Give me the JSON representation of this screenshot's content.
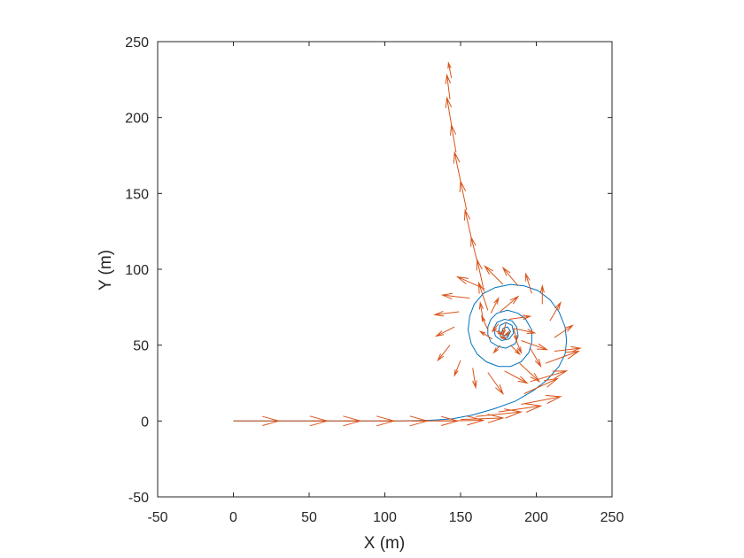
{
  "chart_data": {
    "type": "line",
    "title": "",
    "xlabel": "X (m)",
    "ylabel": "Y (m)",
    "xlim": [
      -50,
      250
    ],
    "ylim": [
      -50,
      250
    ],
    "xticks": [
      -50,
      0,
      50,
      100,
      150,
      200,
      250
    ],
    "yticks": [
      -50,
      0,
      50,
      100,
      150,
      200,
      250
    ],
    "xtick_labels": [
      "-50",
      "0",
      "50",
      "100",
      "150",
      "200",
      "250"
    ],
    "ytick_labels": [
      "-50",
      "0",
      "50",
      "100",
      "150",
      "200",
      "250"
    ],
    "grid": false,
    "box": true,
    "series": [
      {
        "kind": "trajectory",
        "color": "#0072BD",
        "points": [
          [
            0,
            0
          ],
          [
            40,
            0
          ],
          [
            80,
            0
          ],
          [
            110,
            0
          ],
          [
            130,
            0.5
          ],
          [
            145,
            1.5
          ],
          [
            158,
            4
          ],
          [
            172,
            8
          ],
          [
            186,
            13
          ],
          [
            198,
            20
          ],
          [
            207,
            27
          ],
          [
            215,
            36
          ],
          [
            219,
            44
          ],
          [
            220,
            53
          ],
          [
            219,
            62
          ],
          [
            215,
            72
          ],
          [
            209,
            80
          ],
          [
            201,
            86
          ],
          [
            192,
            89
          ],
          [
            183,
            90
          ],
          [
            173,
            88
          ],
          [
            165,
            84
          ],
          [
            159,
            77
          ],
          [
            156,
            69
          ],
          [
            155,
            60
          ],
          [
            157,
            51
          ],
          [
            161,
            44
          ],
          [
            167,
            39
          ],
          [
            175,
            36
          ],
          [
            183,
            36
          ],
          [
            190,
            39
          ],
          [
            195,
            45
          ],
          [
            197,
            52
          ],
          [
            197,
            60
          ],
          [
            193,
            67
          ],
          [
            188,
            71
          ],
          [
            181,
            73
          ],
          [
            174,
            71
          ],
          [
            170,
            67
          ],
          [
            168,
            62
          ],
          [
            168,
            57
          ],
          [
            170,
            52
          ],
          [
            175,
            49
          ],
          [
            180,
            48
          ],
          [
            186,
            51
          ],
          [
            188,
            56
          ],
          [
            187,
            62
          ],
          [
            184,
            66
          ],
          [
            179,
            67
          ],
          [
            174,
            65
          ],
          [
            172,
            61
          ],
          [
            173,
            56
          ],
          [
            177,
            53
          ],
          [
            182,
            54
          ],
          [
            185,
            58
          ],
          [
            184,
            63
          ],
          [
            180,
            65
          ],
          [
            176,
            63
          ],
          [
            175,
            59
          ],
          [
            177,
            55
          ],
          [
            181,
            55
          ],
          [
            183,
            59
          ],
          [
            181,
            62
          ],
          [
            178,
            61
          ],
          [
            177,
            58
          ],
          [
            179,
            56
          ],
          [
            181,
            58
          ]
        ]
      },
      {
        "kind": "quiver",
        "color": "#D95319",
        "arrows": [
          [
            0,
            0,
            30,
            0
          ],
          [
            30,
            0,
            32,
            0
          ],
          [
            52,
            0,
            32,
            0
          ],
          [
            74,
            0,
            32,
            0
          ],
          [
            96,
            0,
            32,
            0
          ],
          [
            118,
            0,
            30,
            0
          ],
          [
            135,
            0,
            30,
            0.5
          ],
          [
            150,
            1,
            28,
            1
          ],
          [
            160,
            3,
            30,
            3
          ],
          [
            175,
            6,
            28,
            4
          ],
          [
            190,
            11,
            26,
            5
          ],
          [
            192,
            18,
            22,
            10
          ],
          [
            196,
            26,
            24,
            7
          ],
          [
            206,
            38,
            22,
            8
          ],
          [
            212,
            46,
            17,
            2
          ],
          [
            212,
            55,
            12,
            8
          ],
          [
            209,
            66,
            7,
            12
          ],
          [
            204,
            77,
            0,
            12
          ],
          [
            197,
            84,
            -4,
            13
          ],
          [
            188,
            89,
            -10,
            12
          ],
          [
            178,
            90,
            -12,
            12
          ],
          [
            166,
            87,
            -18,
            8
          ],
          [
            156,
            81,
            -18,
            2
          ],
          [
            149,
            72,
            -16,
            -2
          ],
          [
            146,
            62,
            -12,
            -6
          ],
          [
            143,
            50,
            -8,
            -10
          ],
          [
            150,
            40,
            -4,
            -10
          ],
          [
            158,
            35,
            2,
            -13
          ],
          [
            168,
            32,
            10,
            -14
          ],
          [
            179,
            33,
            15,
            -8
          ],
          [
            189,
            38,
            13,
            -12
          ],
          [
            196,
            48,
            7,
            -12
          ],
          [
            190,
            53,
            17,
            -6
          ],
          [
            185,
            61,
            14,
            -3
          ],
          [
            182,
            67,
            14,
            2
          ],
          [
            176,
            72,
            12,
            10
          ],
          [
            170,
            71,
            5,
            10
          ],
          [
            165,
            66,
            -2,
            12
          ],
          [
            168,
            60,
            -4,
            9
          ],
          [
            171,
            54,
            -8,
            5
          ],
          [
            176,
            50,
            -4,
            -5
          ],
          [
            183,
            50,
            6,
            -6
          ],
          [
            186,
            55,
            4,
            -10
          ],
          [
            185,
            61,
            2,
            -8
          ],
          [
            180,
            65,
            -2,
            -8
          ],
          [
            175,
            64,
            -4,
            -5
          ],
          [
            172,
            60,
            6,
            -3
          ],
          [
            176,
            56,
            4,
            -2
          ],
          [
            180,
            56,
            2,
            3
          ],
          [
            168,
            73,
            -6,
            18
          ],
          [
            165,
            88,
            -4,
            18
          ],
          [
            161,
            105,
            -4,
            16
          ],
          [
            157,
            121,
            -4,
            18
          ],
          [
            154,
            139,
            -4,
            19
          ],
          [
            150,
            158,
            -4,
            19
          ],
          [
            147,
            177,
            -3,
            18
          ],
          [
            144,
            195,
            -3,
            18
          ],
          [
            143,
            212,
            -2,
            16
          ],
          [
            144,
            226,
            -2,
            10
          ]
        ]
      }
    ]
  }
}
